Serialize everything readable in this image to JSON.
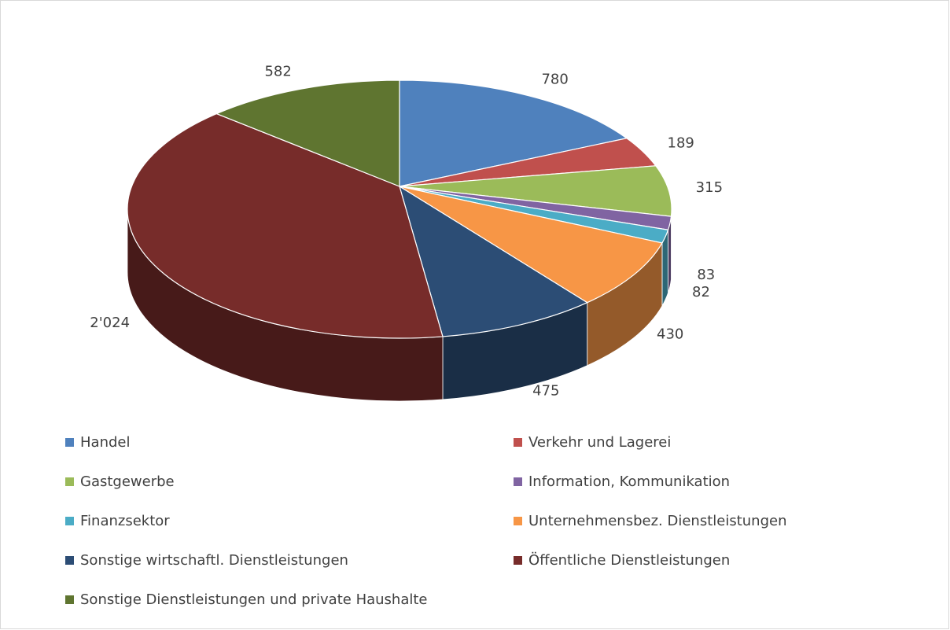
{
  "chart_data": {
    "type": "pie3d",
    "categories": [
      "Handel",
      "Verkehr und Lagerei",
      "Gastgewerbe",
      "Information, Kommunikation",
      "Finanzsektor",
      "Unternehmensbez. Dienstleistungen",
      "Sonstige wirtschaftl. Dienstleistungen",
      "Öffentliche Dienstleistungen",
      "Sonstige Dienstleistungen und private Haushalte"
    ],
    "values": [
      780,
      189,
      315,
      83,
      82,
      430,
      475,
      2024,
      582
    ],
    "value_labels": [
      "780",
      "189",
      "315",
      "83",
      "82",
      "430",
      "475",
      "2'024",
      "582"
    ],
    "colors": [
      "#4f81bd",
      "#c0504d",
      "#9bbb59",
      "#8064a2",
      "#4bacc6",
      "#f79646",
      "#2c4d75",
      "#772c2a",
      "#5f7530"
    ],
    "legend": "bottom"
  }
}
